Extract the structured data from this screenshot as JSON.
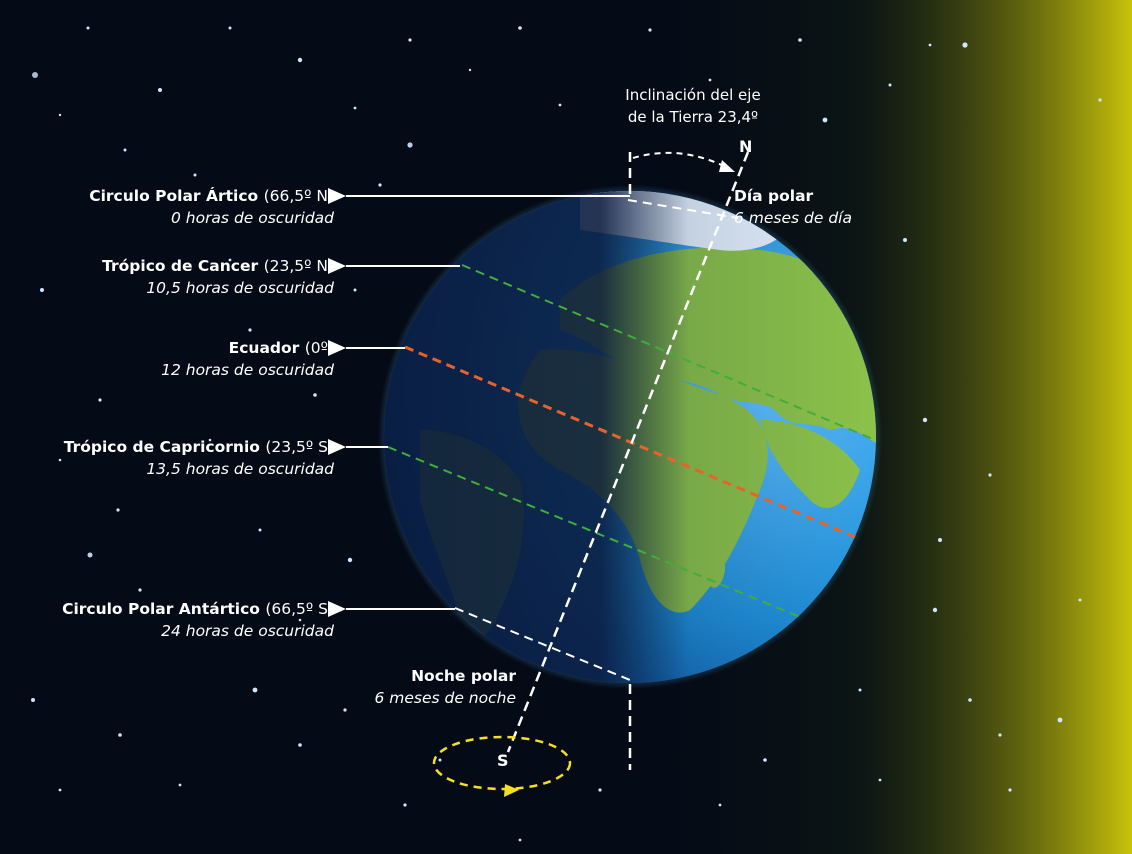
{
  "axis_label": {
    "line1": "Inclinación del eje",
    "line2": "de la Tierra 23,4º"
  },
  "poles": {
    "north": "N",
    "south": "S"
  },
  "polar_day": {
    "title": "Día polar",
    "subtitle": "6 meses de día"
  },
  "polar_night": {
    "title": "Noche polar",
    "subtitle": "6 meses de noche"
  },
  "latitudes": [
    {
      "name": "Circulo Polar Ártico",
      "coord": "(66,5º N)",
      "darkness": "0 horas de oscuridad",
      "color": "#ffffff"
    },
    {
      "name": "Trópico de Cancer",
      "coord": "(23,5º N)",
      "darkness": "10,5 horas de oscuridad",
      "color": "#3fae3a"
    },
    {
      "name": "Ecuador",
      "coord": "(0º)",
      "darkness": "12 horas de oscuridad",
      "color": "#e8632a"
    },
    {
      "name": "Trópico de Capricornio",
      "coord": "(23,5º S)",
      "darkness": "13,5 horas de oscuridad",
      "color": "#3fae3a"
    },
    {
      "name": "Circulo Polar Antártico",
      "coord": "(66,5º S)",
      "darkness": "24 horas de oscuridad",
      "color": "#ffffff"
    }
  ],
  "colors": {
    "space": "#050b16",
    "sun_glow": "#c9c20a",
    "ocean": "#1f8fd8",
    "land": "#8cc24a",
    "night_side": "#0c1f46",
    "axis": "#ffffff",
    "rotation_arrow": "#f3e020"
  }
}
